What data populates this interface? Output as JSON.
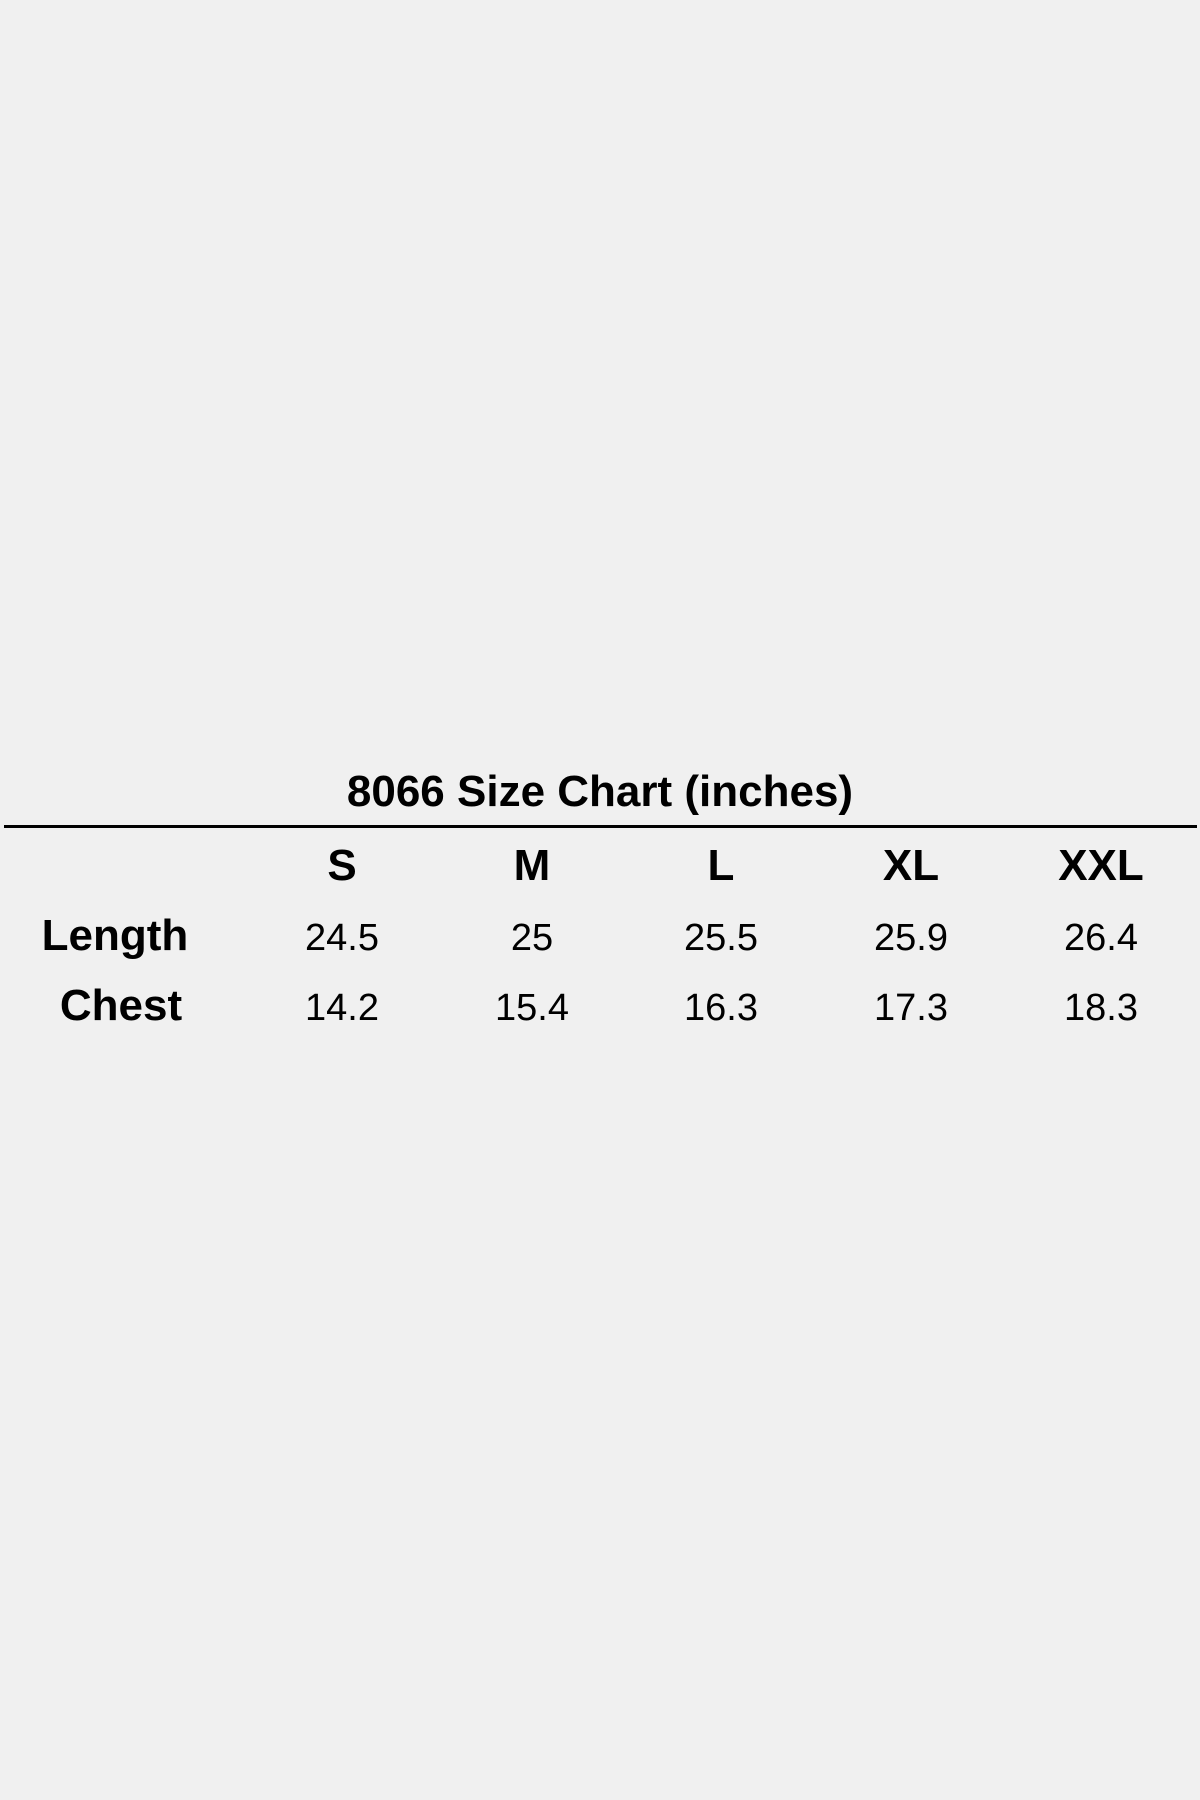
{
  "title": "8066 Size Chart (inches)",
  "chart_data": {
    "type": "table",
    "title": "8066 Size Chart (inches)",
    "columns": [
      "S",
      "M",
      "L",
      "XL",
      "XXL"
    ],
    "rows": [
      {
        "label": "Length",
        "values": [
          "24.5",
          "25",
          "25.5",
          "25.9",
          "26.4"
        ]
      },
      {
        "label": "Chest",
        "values": [
          "14.2",
          "15.4",
          "16.3",
          "17.3",
          "18.3"
        ]
      }
    ]
  }
}
